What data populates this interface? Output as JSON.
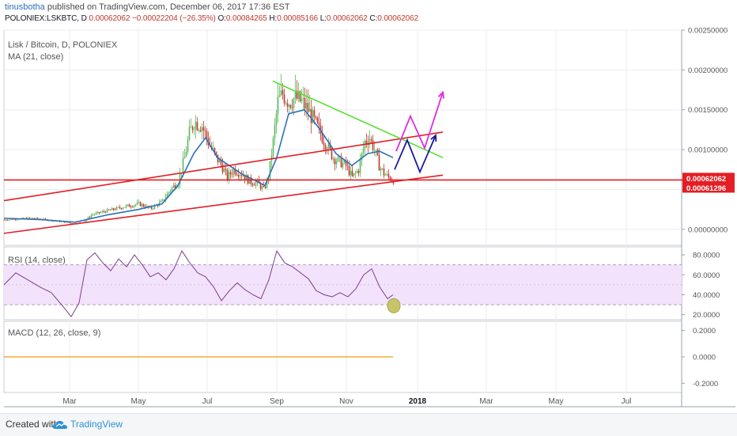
{
  "header": {
    "author": "tinusbotha",
    "published": " published on TradingView.com, December 06, 2017 17:36 EST",
    "symbol_line": "POLONIEX:LSKBTC, D",
    "close_value": "0.00062062",
    "change": "−0.00022204 (−26.35%)",
    "o_label": "O:",
    "o_value": "0.00084265",
    "h_label": "H:",
    "h_value": "0.00085166",
    "l_label": "L:",
    "l_value": "0.00062062",
    "c_label": "C:",
    "c_value": "0.00062062"
  },
  "footer": {
    "created": "Created with",
    "brand": "TradingView"
  },
  "colors": {
    "candle_up": "#5bb85d",
    "candle_down": "#c0392b",
    "ma": "#2a71b8",
    "trend_red": "#e31e24",
    "trend_green": "#58e030",
    "projection_blue": "#1a1aa0",
    "projection_magenta": "#e02be0",
    "rsi_line": "#7b3f8f",
    "rsi_band": "#f3e2fb",
    "macd_line": "#f39c12",
    "price_tag_red": "#e31e24",
    "rsi_marker": "#c9c46a"
  },
  "chart_data": [
    {
      "type": "candlestick",
      "title": "Lisk / Bitcoin, D, POLONIEX",
      "indicator_label": "MA (21, close)",
      "x_ticks": [
        "Mar",
        "May",
        "Jul",
        "Sep",
        "Nov",
        "2018",
        "Mar",
        "May",
        "Jul"
      ],
      "y_ticks": [
        "0.00250000",
        "0.00200000",
        "0.00150000",
        "0.00100000",
        "0.00050000",
        "0.00000000"
      ],
      "ylim": [
        -0.0002,
        0.0025
      ],
      "last_price_label": "0.00062062",
      "second_price_label": "0.00061296",
      "close_path": [
        [
          0,
          0.00012
        ],
        [
          35,
          0.00014
        ],
        [
          70,
          0.0001
        ],
        [
          90,
          7e-05
        ],
        [
          100,
          9e-05
        ],
        [
          110,
          0.00018
        ],
        [
          125,
          0.00022
        ],
        [
          150,
          0.00028
        ],
        [
          170,
          0.00032
        ],
        [
          185,
          0.00026
        ],
        [
          200,
          0.00035
        ],
        [
          210,
          0.0005
        ],
        [
          220,
          0.0006
        ],
        [
          228,
          0.0009
        ],
        [
          234,
          0.0012
        ],
        [
          240,
          0.00135
        ],
        [
          250,
          0.0013
        ],
        [
          260,
          0.00105
        ],
        [
          268,
          0.0009
        ],
        [
          275,
          0.0008
        ],
        [
          282,
          0.00065
        ],
        [
          290,
          0.00075
        ],
        [
          300,
          0.0007
        ],
        [
          310,
          0.0006
        ],
        [
          320,
          0.00058
        ],
        [
          328,
          0.0005
        ],
        [
          334,
          0.00065
        ],
        [
          340,
          0.0011
        ],
        [
          346,
          0.0016
        ],
        [
          352,
          0.0017
        ],
        [
          360,
          0.0016
        ],
        [
          368,
          0.00165
        ],
        [
          376,
          0.0016
        ],
        [
          384,
          0.0015
        ],
        [
          392,
          0.00135
        ],
        [
          400,
          0.0012
        ],
        [
          408,
          0.00105
        ],
        [
          416,
          0.0009
        ],
        [
          424,
          0.00085
        ],
        [
          432,
          0.0008
        ],
        [
          440,
          0.00065
        ],
        [
          448,
          0.00075
        ],
        [
          456,
          0.0011
        ],
        [
          462,
          0.00115
        ],
        [
          468,
          0.001
        ],
        [
          474,
          0.0008
        ],
        [
          480,
          0.0007
        ],
        [
          486,
          0.00065
        ],
        [
          492,
          0.00062
        ]
      ],
      "ma_path": [
        [
          0,
          0.00014
        ],
        [
          50,
          0.00012
        ],
        [
          90,
          9e-05
        ],
        [
          130,
          0.00018
        ],
        [
          170,
          0.00025
        ],
        [
          200,
          0.00032
        ],
        [
          220,
          0.00055
        ],
        [
          240,
          0.00095
        ],
        [
          255,
          0.00115
        ],
        [
          270,
          0.0009
        ],
        [
          300,
          0.0007
        ],
        [
          330,
          0.00055
        ],
        [
          345,
          0.0009
        ],
        [
          360,
          0.00145
        ],
        [
          380,
          0.0015
        ],
        [
          400,
          0.00125
        ],
        [
          420,
          0.00095
        ],
        [
          440,
          0.0008
        ],
        [
          460,
          0.00095
        ],
        [
          475,
          0.00098
        ],
        [
          492,
          0.0009
        ]
      ],
      "trendlines": [
        {
          "color": "red",
          "points": [
            [
              0,
              -5e-05
            ],
            [
              555,
              0.00068
            ]
          ]
        },
        {
          "color": "red",
          "points": [
            [
              0,
              0.00036
            ],
            [
              555,
              0.00122
            ]
          ]
        },
        {
          "color": "red",
          "points": [
            [
              0,
              0.00062
            ],
            [
              862,
              0.00062
            ]
          ]
        },
        {
          "color": "green",
          "points": [
            [
              340,
              0.00186
            ],
            [
              555,
              0.0009
            ]
          ]
        }
      ],
      "projection_blue": [
        [
          494,
          0.00075
        ],
        [
          510,
          0.00112
        ],
        [
          526,
          0.00072
        ],
        [
          546,
          0.00118
        ]
      ],
      "projection_magenta": [
        [
          496,
          0.00098
        ],
        [
          514,
          0.00142
        ],
        [
          532,
          0.00102
        ],
        [
          555,
          0.00172
        ]
      ]
    },
    {
      "type": "line",
      "title": "RSI (14, close)",
      "y_ticks": [
        "80.0000",
        "60.0000",
        "40.0000",
        "20.0000"
      ],
      "ylim": [
        15,
        88
      ],
      "band": [
        30,
        70
      ],
      "midline": 50,
      "values_path": [
        [
          0,
          50
        ],
        [
          15,
          62
        ],
        [
          30,
          55
        ],
        [
          45,
          48
        ],
        [
          60,
          42
        ],
        [
          75,
          28
        ],
        [
          85,
          18
        ],
        [
          95,
          32
        ],
        [
          105,
          75
        ],
        [
          115,
          82
        ],
        [
          125,
          72
        ],
        [
          135,
          64
        ],
        [
          145,
          76
        ],
        [
          155,
          68
        ],
        [
          165,
          80
        ],
        [
          175,
          70
        ],
        [
          185,
          58
        ],
        [
          195,
          62
        ],
        [
          205,
          55
        ],
        [
          215,
          66
        ],
        [
          225,
          84
        ],
        [
          235,
          72
        ],
        [
          245,
          62
        ],
        [
          255,
          58
        ],
        [
          265,
          48
        ],
        [
          275,
          34
        ],
        [
          285,
          44
        ],
        [
          295,
          52
        ],
        [
          305,
          45
        ],
        [
          315,
          40
        ],
        [
          325,
          36
        ],
        [
          335,
          55
        ],
        [
          345,
          84
        ],
        [
          355,
          72
        ],
        [
          365,
          68
        ],
        [
          375,
          62
        ],
        [
          385,
          56
        ],
        [
          395,
          44
        ],
        [
          405,
          40
        ],
        [
          415,
          38
        ],
        [
          425,
          42
        ],
        [
          435,
          38
        ],
        [
          445,
          46
        ],
        [
          455,
          60
        ],
        [
          465,
          66
        ],
        [
          475,
          48
        ],
        [
          485,
          36
        ],
        [
          492,
          40
        ]
      ],
      "marker": [
        493,
        29
      ]
    },
    {
      "type": "line",
      "title": "MACD (12, 26, close, 9)",
      "y_ticks": [
        "0.2000",
        "0.0000",
        "-0.2000"
      ],
      "ylim": [
        -0.27,
        0.27
      ],
      "values_path": [
        [
          0,
          0
        ],
        [
          492,
          0
        ]
      ]
    }
  ]
}
